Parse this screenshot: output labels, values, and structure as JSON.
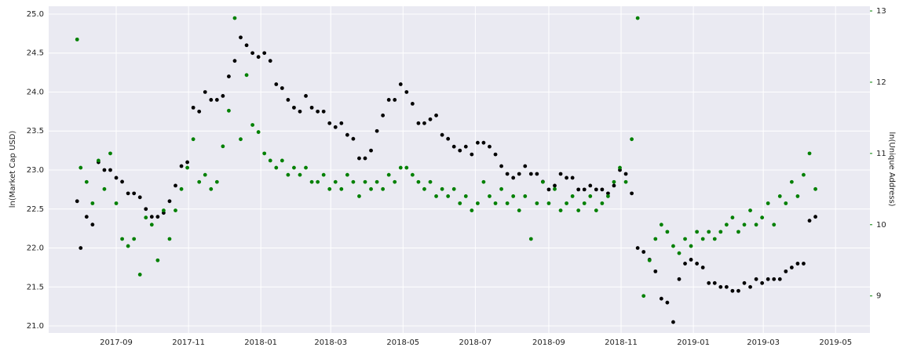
{
  "chart_data": {
    "type": "scatter",
    "y_label": "ln(Market Cap USD)",
    "y2_label": "ln(Unique Address)",
    "xlim": [
      -57,
      636
    ],
    "xticks": [
      {
        "value": 0,
        "label": "2017-09"
      },
      {
        "value": 61,
        "label": "2017-11"
      },
      {
        "value": 122,
        "label": "2018-01"
      },
      {
        "value": 181,
        "label": "2018-03"
      },
      {
        "value": 242,
        "label": "2018-05"
      },
      {
        "value": 303,
        "label": "2018-07"
      },
      {
        "value": 365,
        "label": "2018-09"
      },
      {
        "value": 426,
        "label": "2018-11"
      },
      {
        "value": 487,
        "label": "2019-01"
      },
      {
        "value": 546,
        "label": "2019-03"
      },
      {
        "value": 607,
        "label": "2019-05"
      }
    ],
    "ylim": [
      20.91,
      25.1
    ],
    "yticks": [
      {
        "value": 21,
        "label": "21.0"
      },
      21.5,
      {
        "value": 22,
        "label": "22.0"
      },
      22.5,
      {
        "value": 23,
        "label": "23.0"
      },
      23.5,
      {
        "value": 24,
        "label": "24.0"
      },
      24.5,
      {
        "value": 25,
        "label": "25.0"
      }
    ],
    "y2lim": [
      8.48,
      13.066
    ],
    "y2ticks": [
      9,
      10,
      11,
      12,
      13
    ],
    "y2_color": "#008000",
    "grid": true,
    "x": [
      -33,
      -30,
      -25,
      -20,
      -15,
      -10,
      -5,
      0,
      5,
      10,
      15,
      20,
      25,
      30,
      35,
      40,
      45,
      50,
      55,
      60,
      65,
      70,
      75,
      80,
      85,
      90,
      95,
      100,
      105,
      110,
      115,
      120,
      125,
      130,
      135,
      140,
      145,
      150,
      155,
      160,
      165,
      170,
      175,
      180,
      185,
      190,
      195,
      200,
      205,
      210,
      215,
      220,
      225,
      230,
      235,
      240,
      245,
      250,
      255,
      260,
      265,
      270,
      275,
      280,
      285,
      290,
      295,
      300,
      305,
      310,
      315,
      320,
      325,
      330,
      335,
      340,
      345,
      350,
      355,
      360,
      365,
      370,
      375,
      380,
      385,
      390,
      395,
      400,
      405,
      410,
      415,
      420,
      425,
      430,
      435,
      440,
      445,
      450,
      455,
      460,
      465,
      470,
      475,
      480,
      485,
      490,
      495,
      500,
      505,
      510,
      515,
      520,
      525,
      530,
      535,
      540,
      545,
      550,
      555,
      560,
      565,
      570,
      575,
      580,
      585,
      590
    ],
    "series": [
      {
        "color": "#000000",
        "values": [
          22.6,
          22.0,
          22.4,
          22.3,
          23.1,
          23.0,
          23.0,
          22.9,
          22.85,
          22.7,
          22.7,
          22.65,
          22.5,
          22.4,
          22.4,
          22.45,
          22.6,
          22.8,
          23.05,
          23.1,
          23.8,
          23.75,
          24.0,
          23.9,
          23.9,
          23.95,
          24.2,
          24.4,
          24.7,
          24.6,
          24.5,
          24.45,
          24.5,
          24.4,
          24.1,
          24.05,
          23.9,
          23.8,
          23.75,
          23.95,
          23.8,
          23.75,
          23.75,
          23.6,
          23.55,
          23.6,
          23.45,
          23.4,
          23.15,
          23.15,
          23.25,
          23.5,
          23.7,
          23.9,
          23.9,
          24.1,
          24.0,
          23.85,
          23.6,
          23.6,
          23.65,
          23.7,
          23.45,
          23.4,
          23.3,
          23.25,
          23.3,
          23.2,
          23.35,
          23.35,
          23.3,
          23.2,
          23.05,
          22.95,
          22.9,
          22.95,
          23.05,
          22.95,
          22.95,
          22.85,
          22.75,
          22.8,
          22.95,
          22.9,
          22.9,
          22.75,
          22.75,
          22.8,
          22.75,
          22.75,
          22.7,
          22.8,
          23.0,
          22.95,
          22.7,
          22.0,
          21.95,
          21.85,
          21.7,
          21.35,
          21.3,
          21.05,
          21.6,
          21.8,
          21.85,
          21.8,
          21.75,
          21.55,
          21.55,
          21.5,
          21.5,
          21.45,
          21.45,
          21.55,
          21.5,
          21.6,
          21.55,
          21.6,
          21.6,
          21.6,
          21.7,
          21.75,
          21.8,
          21.8,
          22.35,
          22.4
        ]
      },
      {
        "color": "#008000",
        "axis": "y2",
        "values": [
          12.6,
          10.8,
          10.6,
          10.3,
          10.9,
          10.5,
          11.0,
          10.3,
          9.8,
          9.7,
          9.8,
          9.3,
          10.1,
          10.0,
          9.5,
          10.2,
          9.8,
          10.2,
          10.5,
          10.8,
          11.2,
          10.6,
          10.7,
          10.5,
          10.6,
          11.1,
          11.6,
          12.9,
          11.2,
          12.1,
          11.4,
          11.3,
          11.0,
          10.9,
          10.8,
          10.9,
          10.7,
          10.8,
          10.7,
          10.8,
          10.6,
          10.6,
          10.7,
          10.5,
          10.6,
          10.5,
          10.7,
          10.6,
          10.4,
          10.6,
          10.5,
          10.6,
          10.5,
          10.7,
          10.6,
          10.8,
          10.8,
          10.7,
          10.6,
          10.5,
          10.6,
          10.4,
          10.5,
          10.4,
          10.5,
          10.3,
          10.4,
          10.2,
          10.3,
          10.6,
          10.4,
          10.3,
          10.5,
          10.3,
          10.4,
          10.2,
          10.4,
          9.8,
          10.3,
          10.6,
          10.3,
          10.5,
          10.2,
          10.3,
          10.4,
          10.2,
          10.3,
          10.4,
          10.2,
          10.3,
          10.4,
          10.6,
          10.8,
          10.6,
          11.2,
          12.9,
          9.0,
          9.5,
          9.8,
          10.0,
          9.9,
          9.7,
          9.6,
          9.8,
          9.7,
          9.9,
          9.8,
          9.9,
          9.8,
          9.9,
          10.0,
          10.1,
          9.9,
          10.0,
          10.2,
          10.0,
          10.1,
          10.3,
          10.0,
          10.4,
          10.3,
          10.6,
          10.4,
          10.7,
          11.0,
          10.5
        ]
      }
    ]
  }
}
